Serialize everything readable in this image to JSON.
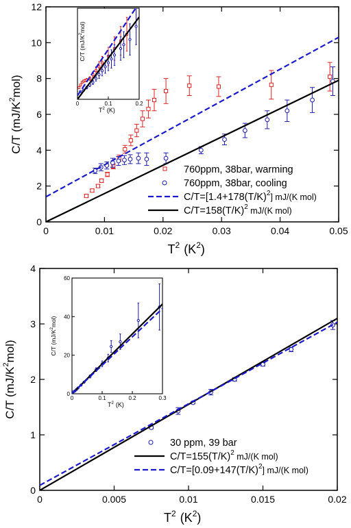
{
  "chart_data": [
    {
      "type": "scatter",
      "xlabel": "T",
      "xlabel_sup": "2",
      "xlabel_unit": "(K",
      "xlabel_unit_sup": "2",
      "xlabel_unit_end": ")",
      "ylabel": "C/T  (mJ/K",
      "ylabel_sup": "2",
      "ylabel_end": "mol)",
      "xlim": [
        0,
        0.05
      ],
      "ylim": [
        0,
        12
      ],
      "xticks": [
        0,
        0.01,
        0.02,
        0.03,
        0.04,
        0.05
      ],
      "xtick_labels": [
        "0",
        "0.01",
        "0.02",
        "0.03",
        "0.04",
        "0.05"
      ],
      "yticks": [
        0,
        2,
        4,
        6,
        8,
        10,
        12
      ],
      "ytick_labels": [
        "0",
        "2",
        "4",
        "6",
        "8",
        "10",
        "12"
      ],
      "grid": false,
      "legend_position": "bottom-right",
      "series": [
        {
          "name": "760ppm, 38bar, warming",
          "kind": "points",
          "marker": "square",
          "color": "#dd2222",
          "x": [
            0.0069,
            0.0079,
            0.0089,
            0.0095,
            0.0105,
            0.0115,
            0.0125,
            0.0135,
            0.0145,
            0.0155,
            0.0165,
            0.0175,
            0.0185,
            0.0205,
            0.0245,
            0.0295,
            0.0385,
            0.0485
          ],
          "y": [
            1.45,
            1.75,
            2.0,
            2.3,
            2.65,
            3.1,
            3.55,
            4.05,
            4.55,
            5.1,
            5.75,
            6.3,
            6.8,
            7.3,
            7.6,
            7.55,
            7.65,
            8.1
          ],
          "err": [
            0.08,
            0.08,
            0.08,
            0.1,
            0.12,
            0.14,
            0.18,
            0.22,
            0.3,
            0.35,
            0.45,
            0.5,
            0.6,
            0.7,
            0.55,
            0.55,
            0.8,
            0.8
          ]
        },
        {
          "name": "760ppm, 38bar, cooling",
          "kind": "points",
          "marker": "circle",
          "color": "#1a1aaa",
          "x": [
            0.0084,
            0.0094,
            0.0104,
            0.0114,
            0.0124,
            0.0134,
            0.0144,
            0.0158,
            0.0172,
            0.0205,
            0.0265,
            0.0305,
            0.034,
            0.0378,
            0.0412,
            0.0455,
            0.049
          ],
          "y": [
            2.85,
            3.05,
            3.15,
            3.3,
            3.4,
            3.45,
            3.5,
            3.55,
            3.5,
            3.55,
            4.0,
            4.6,
            5.1,
            5.7,
            6.2,
            6.8,
            7.85
          ],
          "err": [
            0.15,
            0.2,
            0.2,
            0.25,
            0.25,
            0.25,
            0.25,
            0.3,
            0.35,
            0.3,
            0.2,
            0.3,
            0.4,
            0.5,
            0.6,
            0.7,
            0.8
          ]
        },
        {
          "name": "C/T=[1.4+178(T/K)",
          "name_sup": "2",
          "name_end": "] mJ/(K mol)",
          "kind": "line",
          "style": "dashed",
          "color": "#1a1acc",
          "x": [
            0,
            0.05
          ],
          "y": [
            1.4,
            10.3
          ]
        },
        {
          "name": "C/T=158(T/K)",
          "name_sup": "2",
          "name_end": " mJ/(K mol)",
          "kind": "line",
          "style": "solid",
          "color": "#000000",
          "x": [
            0,
            0.05
          ],
          "y": [
            0,
            7.9
          ]
        }
      ],
      "inset": {
        "xlabel": "T",
        "xlabel_sup": "2",
        "xlabel_unit": "(K)",
        "ylabel": "C/T  (mJ/K",
        "ylabel_sup": "2",
        "ylabel_end": "mol)",
        "xlim": [
          0,
          0.2
        ],
        "ylim": [
          0,
          35
        ],
        "xticks": [
          0,
          0.1,
          0.2
        ],
        "xtick_labels": [
          "0",
          "0.1",
          "0.2"
        ],
        "series": [
          {
            "kind": "points",
            "marker": "square",
            "color": "#dd2222",
            "x": [
              0.005,
              0.01,
              0.015,
              0.02,
              0.025,
              0.03,
              0.04,
              0.05,
              0.06,
              0.07,
              0.08,
              0.1,
              0.12,
              0.14,
              0.16
            ],
            "y": [
              4.5,
              5.5,
              6.5,
              7.0,
              7.2,
              7.4,
              8.0,
              9.5,
              11.0,
              12.5,
              14.0,
              16.5,
              19.5,
              22.5,
              25.0
            ],
            "err": [
              0.3,
              0.3,
              0.3,
              0.4,
              0.5,
              0.6,
              0.7,
              1.0,
              1.5,
              2.0,
              2.5,
              3.5,
              4.5,
              5.5,
              6.5
            ]
          },
          {
            "kind": "points",
            "marker": "circle",
            "color": "#1a1aaa",
            "x": [
              0.01,
              0.02,
              0.03,
              0.04,
              0.05,
              0.06,
              0.07,
              0.08,
              0.09,
              0.1,
              0.11,
              0.12,
              0.14,
              0.15,
              0.17,
              0.19
            ],
            "y": [
              3.0,
              3.5,
              4.5,
              5.5,
              6.5,
              8.0,
              9.5,
              11.0,
              12.5,
              14.0,
              15.5,
              17.0,
              19.5,
              21.0,
              23.0,
              28.0
            ],
            "err": [
              0.3,
              0.4,
              0.5,
              0.6,
              0.8,
              1.0,
              1.5,
              2.0,
              2.5,
              3.0,
              3.5,
              4.0,
              4.5,
              5.0,
              6.0,
              7.0
            ]
          },
          {
            "kind": "line",
            "style": "solid",
            "color": "#000000",
            "x": [
              0,
              0.2
            ],
            "y": [
              0,
              31.6
            ]
          },
          {
            "kind": "line",
            "style": "dashed",
            "color": "#1a1acc",
            "x": [
              0,
              0.2
            ],
            "y": [
              1.4,
              37
            ]
          }
        ]
      }
    },
    {
      "type": "scatter",
      "xlabel": "T",
      "xlabel_sup": "2",
      "xlabel_unit": "(K",
      "xlabel_unit_sup": "2",
      "xlabel_unit_end": ")",
      "ylabel": "C/T  (mJ/K",
      "ylabel_sup": "2",
      "ylabel_end": "mol)",
      "xlim": [
        0,
        0.02
      ],
      "ylim": [
        0,
        4
      ],
      "xticks": [
        0,
        0.005,
        0.01,
        0.015,
        0.02
      ],
      "xtick_labels": [
        "0",
        "0.005",
        "0.01",
        "0.015",
        "0.02"
      ],
      "yticks": [
        0,
        1,
        2,
        3,
        4
      ],
      "ytick_labels": [
        "0",
        "1",
        "2",
        "3",
        "4"
      ],
      "grid": false,
      "legend_position": "bottom-right",
      "series": [
        {
          "name": "30 ppm, 39 bar",
          "kind": "points",
          "marker": "circle",
          "color": "#1a1aaa",
          "x": [
            0.0075,
            0.0093,
            0.0103,
            0.0115,
            0.0131,
            0.015,
            0.0169,
            0.0197
          ],
          "y": [
            1.13,
            1.43,
            1.58,
            1.77,
            2.0,
            2.27,
            2.54,
            2.98
          ],
          "err": [
            0.02,
            0.06,
            0.02,
            0.05,
            0.03,
            0.03,
            0.04,
            0.08
          ]
        },
        {
          "name": "C/T=155(T/K)",
          "name_sup": "2",
          "name_end": " mJ/(K mol)",
          "kind": "line",
          "style": "solid",
          "color": "#000000",
          "x": [
            0,
            0.02
          ],
          "y": [
            0,
            3.1
          ]
        },
        {
          "name": "C/T=[0.09+147(T/K)",
          "name_sup": "2",
          "name_end": "] mJ/(K mol)",
          "kind": "line",
          "style": "dashed",
          "color": "#1a1acc",
          "x": [
            0,
            0.02
          ],
          "y": [
            0.09,
            3.03
          ]
        }
      ],
      "inset": {
        "xlabel": "T",
        "xlabel_sup": "2",
        "xlabel_unit": "(K)",
        "ylabel": "C/T  (mJ/K",
        "ylabel_sup": "2",
        "ylabel_end": "mol)",
        "xlim": [
          0,
          0.3
        ],
        "ylim": [
          0,
          60
        ],
        "xticks": [
          0,
          0.1,
          0.2,
          0.3
        ],
        "xtick_labels": [
          "0",
          "0.1",
          "0.2",
          "0.3"
        ],
        "yticks": [
          0,
          20,
          40,
          60
        ],
        "ytick_labels": [
          "0",
          "20",
          "40",
          "60"
        ],
        "series": [
          {
            "kind": "points",
            "marker": "circle",
            "color": "#1a1aaa",
            "x": [
              0.005,
              0.01,
              0.015,
              0.02,
              0.03,
              0.04,
              0.06,
              0.08,
              0.1,
              0.12,
              0.13,
              0.16,
              0.22,
              0.29
            ],
            "y": [
              1.0,
              1.5,
              2.2,
              3.0,
              4.5,
              6.0,
              9.0,
              12.5,
              15.5,
              18.5,
              24.5,
              27.0,
              38.0,
              45.0
            ],
            "err": [
              0.1,
              0.1,
              0.2,
              0.2,
              0.3,
              0.5,
              0.8,
              1.0,
              1.5,
              2.0,
              3.0,
              4.0,
              9.0,
              12.0
            ]
          },
          {
            "kind": "line",
            "style": "solid",
            "color": "#000000",
            "x": [
              0,
              0.3
            ],
            "y": [
              0,
              46.5
            ]
          },
          {
            "kind": "line",
            "style": "dashed",
            "color": "#1a1acc",
            "x": [
              0,
              0.3
            ],
            "y": [
              0.09,
              44.2
            ]
          }
        ]
      }
    }
  ]
}
